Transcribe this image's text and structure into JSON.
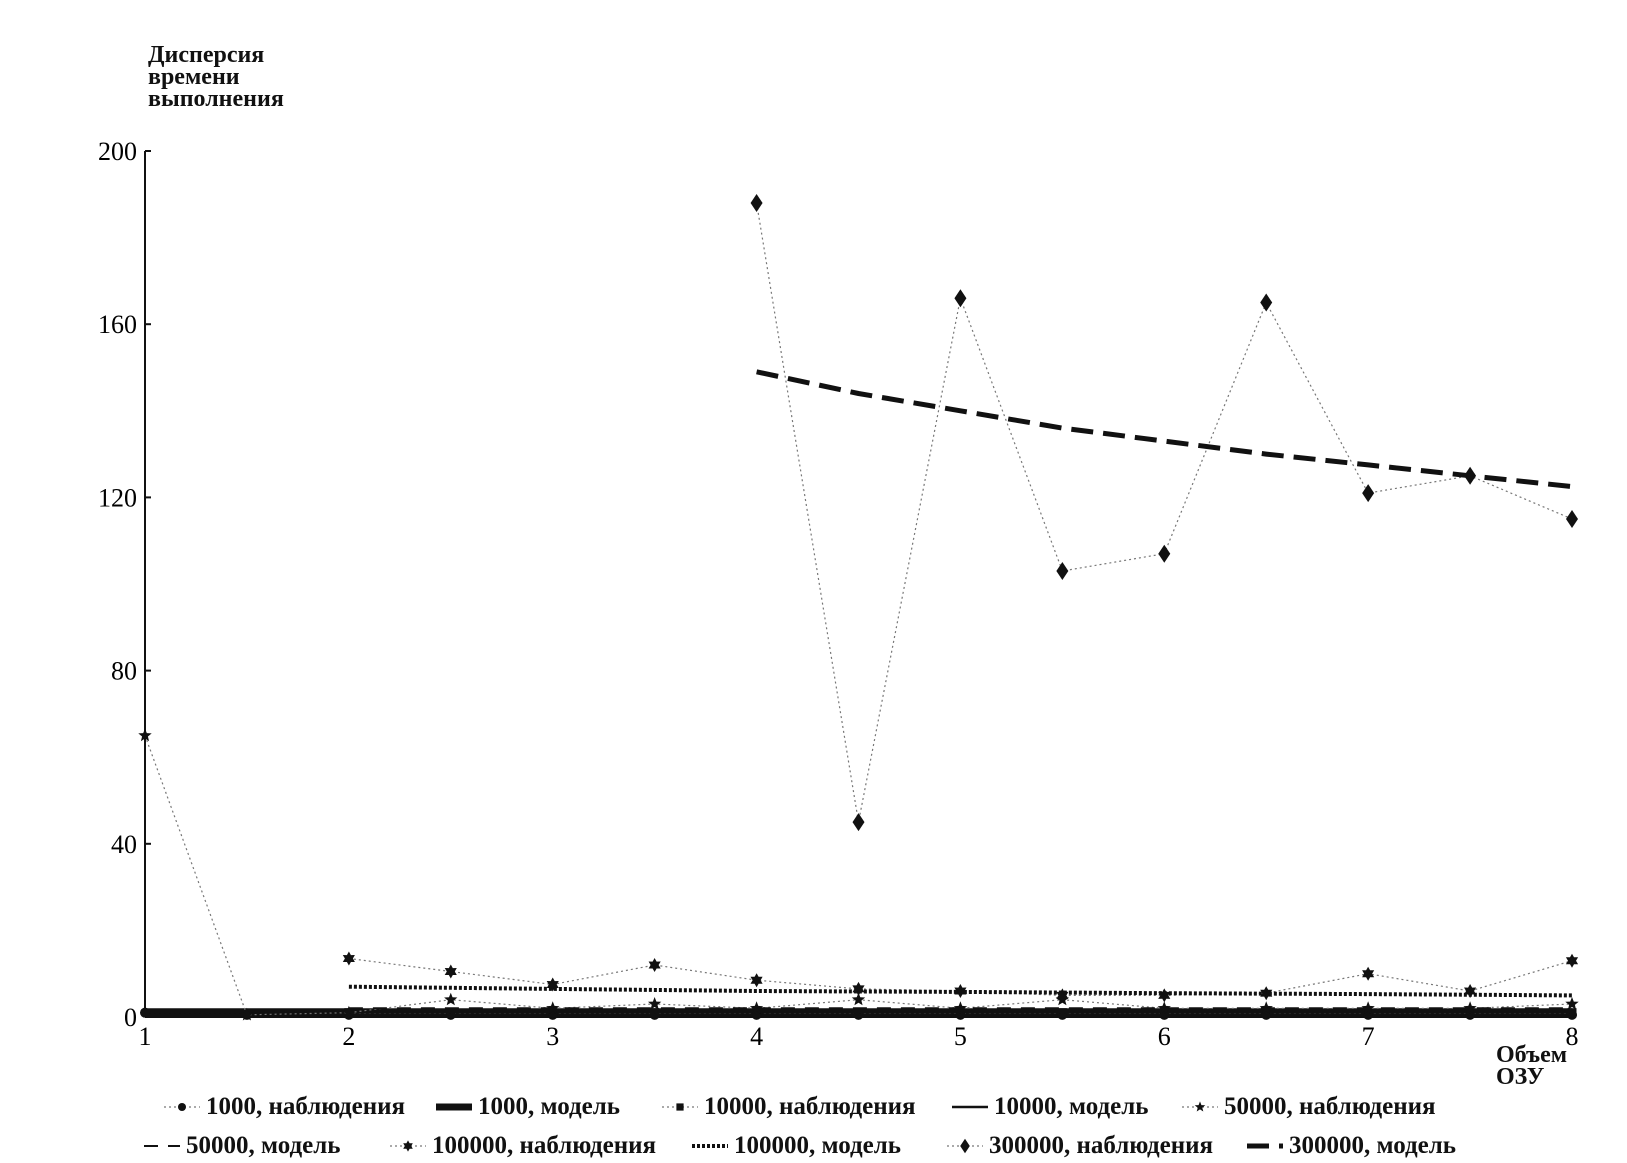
{
  "chart_data": {
    "type": "line",
    "ylabel": [
      "Дисперсия",
      "времени",
      "выполнения"
    ],
    "xlabel": [
      "Объем",
      "ОЗУ"
    ],
    "xlim": [
      1,
      8
    ],
    "ylim": [
      0,
      200
    ],
    "xticks": [
      1,
      2,
      3,
      4,
      5,
      6,
      7,
      8
    ],
    "yticks": [
      0,
      40,
      80,
      120,
      160,
      200
    ],
    "grid": false,
    "legend_position": "bottom",
    "series": [
      {
        "name": "1000, наблюдения",
        "style": "dotted-circle",
        "x": [
          1,
          1.5,
          2,
          2.5,
          3,
          3.5,
          4,
          4.5,
          5,
          5.5,
          6,
          6.5,
          7,
          7.5,
          8
        ],
        "y": [
          1,
          0.5,
          0.5,
          0.5,
          0.5,
          0.5,
          0.5,
          0.5,
          0.5,
          0.5,
          0.5,
          0.5,
          0.5,
          0.5,
          0.5
        ]
      },
      {
        "name": "1000, модель",
        "style": "thick-solid",
        "x": [
          1,
          8
        ],
        "y": [
          1,
          1
        ]
      },
      {
        "name": "10000, наблюдения",
        "style": "dotted-square",
        "x": [
          2,
          2.5,
          3,
          3.5,
          4,
          4.5,
          5,
          5.5,
          6,
          6.5,
          7,
          7.5,
          8
        ],
        "y": [
          1,
          1,
          1,
          1,
          1,
          1,
          1,
          1,
          1,
          1,
          1,
          1,
          1
        ]
      },
      {
        "name": "10000, модель",
        "style": "solid",
        "x": [
          2,
          8
        ],
        "y": [
          1.2,
          1.2
        ]
      },
      {
        "name": "50000, наблюдения",
        "style": "dotted-star",
        "x": [
          1,
          1.5,
          2,
          2.5,
          3,
          3.5,
          4,
          4.5,
          5,
          5.5,
          6,
          6.5,
          7,
          7.5,
          8
        ],
        "y": [
          65,
          0.5,
          1,
          4,
          2,
          3,
          2,
          4,
          2,
          4,
          2,
          2,
          2,
          2,
          3
        ]
      },
      {
        "name": "50000, модель",
        "style": "dashed-thin",
        "x": [
          2,
          8
        ],
        "y": [
          2,
          2
        ]
      },
      {
        "name": "100000, наблюдения",
        "style": "dotted-asterisk",
        "x": [
          2,
          2.5,
          3,
          3.5,
          4,
          4.5,
          5,
          5.5,
          6,
          6.5,
          7,
          7.5,
          8
        ],
        "y": [
          13.5,
          10.5,
          7.5,
          12,
          8.5,
          6.5,
          6,
          5,
          5,
          5.5,
          10,
          6,
          13
        ]
      },
      {
        "name": "100000, модель",
        "style": "dense-dotted",
        "x": [
          2,
          3,
          4,
          5,
          6,
          7,
          8
        ],
        "y": [
          7,
          6.5,
          6,
          5.8,
          5.5,
          5.3,
          5
        ]
      },
      {
        "name": "300000, наблюдения",
        "style": "dotted-diamond",
        "x": [
          4,
          4.5,
          5,
          5.5,
          6,
          6.5,
          7,
          7.5,
          8
        ],
        "y": [
          188,
          45,
          166,
          103,
          107,
          165,
          121,
          125,
          115
        ]
      },
      {
        "name": "300000, модель",
        "style": "thick-dashed",
        "x": [
          4,
          4.5,
          5,
          5.5,
          6,
          6.5,
          7,
          7.5,
          8
        ],
        "y": [
          149,
          144,
          140,
          136,
          133,
          130,
          127.5,
          125,
          122.5
        ]
      }
    ]
  }
}
